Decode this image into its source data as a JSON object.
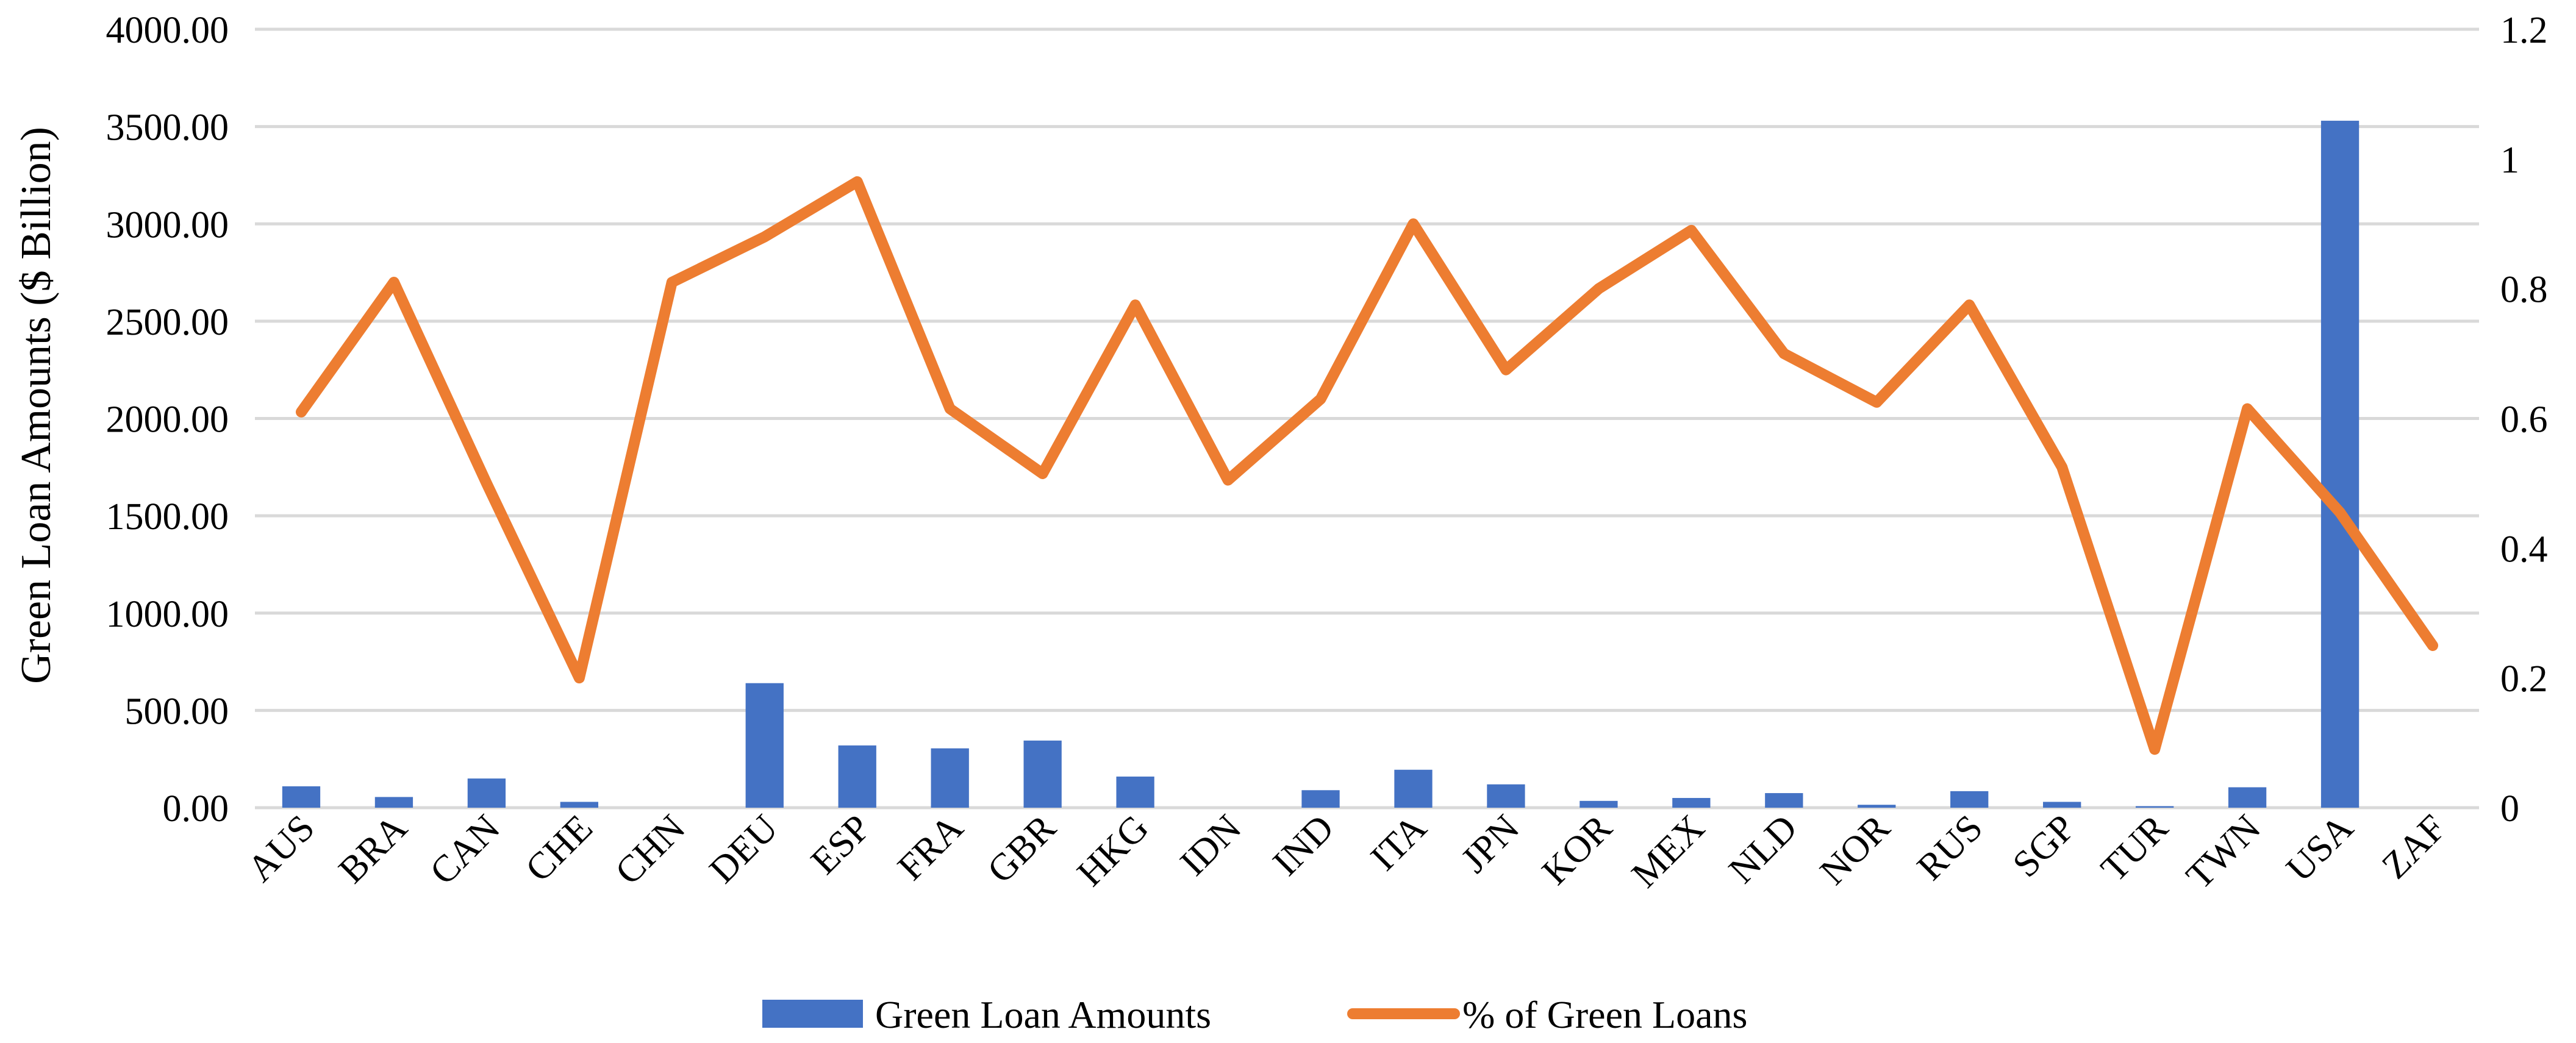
{
  "chart_data": {
    "type": "bar+line",
    "categories": [
      "AUS",
      "BRA",
      "CAN",
      "CHE",
      "CHN",
      "DEU",
      "ESP",
      "FRA",
      "GBR",
      "HKG",
      "IDN",
      "IND",
      "ITA",
      "JPN",
      "KOR",
      "MEX",
      "NLD",
      "NOR",
      "RUS",
      "SGP",
      "TUR",
      "TWN",
      "USA",
      "ZAF"
    ],
    "series": [
      {
        "name": "Green Loan Amounts",
        "kind": "bar",
        "axis": "left",
        "color": "#4472C4",
        "values": [
          110,
          55,
          150,
          30,
          0,
          640,
          320,
          305,
          345,
          160,
          0,
          90,
          195,
          120,
          35,
          50,
          75,
          15,
          85,
          30,
          8,
          105,
          3530,
          0
        ]
      },
      {
        "name": "% of Green Loans",
        "kind": "line",
        "axis": "right",
        "color": "#ED7D31",
        "values": [
          0.61,
          0.81,
          0.5,
          0.2,
          0.81,
          0.88,
          0.965,
          0.615,
          0.515,
          0.775,
          0.505,
          0.63,
          0.9,
          0.675,
          0.8,
          0.89,
          0.7,
          0.625,
          0.775,
          0.525,
          0.09,
          0.615,
          0.455,
          0.25
        ]
      }
    ],
    "ylabel": "Green Loan Amounts ($ Billion)",
    "ylim": [
      0,
      4000
    ],
    "y_ticks": [
      "0.00",
      "500.00",
      "1000.00",
      "1500.00",
      "2000.00",
      "2500.00",
      "3000.00",
      "3500.00",
      "4000.00"
    ],
    "y2lim": [
      0,
      1.2
    ],
    "y2_ticks": [
      "0",
      "0.2",
      "0.4",
      "0.6",
      "0.8",
      "1",
      "1.2"
    ],
    "grid": true,
    "legend_position": "bottom"
  }
}
